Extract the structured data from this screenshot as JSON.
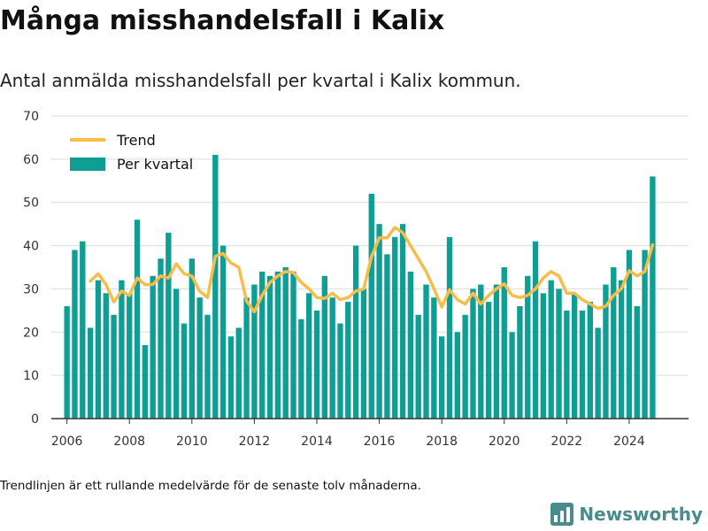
{
  "title": "Många misshandelsfall i Kalix",
  "subtitle": "Antal anmälda misshandelsfall per kvartal i Kalix kommun.",
  "footnote": "Trendlinjen är ett rullande medelvärde för de senaste tolv månaderna.",
  "brand": {
    "name": "Newsworthy",
    "icon": "newsworthy-logo-icon",
    "color": "#4a8c8c"
  },
  "colors": {
    "bar": "#0f9e94",
    "trend": "#f7bd4a",
    "grid": "#dddddd",
    "axis": "#333333"
  },
  "chart_data": {
    "type": "bar",
    "title": "",
    "xlabel": "",
    "ylabel": "",
    "ylim": [
      0,
      70
    ],
    "yticks": [
      0,
      10,
      20,
      30,
      40,
      50,
      60,
      70
    ],
    "xticks": [
      "2006",
      "2008",
      "2010",
      "2012",
      "2014",
      "2016",
      "2018",
      "2020",
      "2022",
      "2024"
    ],
    "grid": true,
    "legend": "top-left",
    "start_quarter": "2006-Q1",
    "series": [
      {
        "name": "Per kvartal",
        "type": "bar",
        "values": [
          26,
          39,
          41,
          21,
          32,
          29,
          24,
          32,
          29,
          46,
          17,
          33,
          37,
          43,
          30,
          22,
          37,
          28,
          24,
          61,
          40,
          19,
          21,
          28,
          31,
          34,
          33,
          34,
          35,
          34,
          23,
          29,
          25,
          33,
          28,
          22,
          27,
          40,
          30,
          52,
          45,
          38,
          42,
          45,
          34,
          24,
          31,
          28,
          19,
          42,
          20,
          24,
          30,
          31,
          27,
          31,
          35,
          20,
          26,
          33,
          41,
          29,
          32,
          30,
          25,
          29,
          25,
          27,
          21,
          31,
          35,
          32,
          39,
          26,
          39,
          56
        ]
      },
      {
        "name": "Trend",
        "type": "line",
        "values": [
          null,
          null,
          null,
          31.8,
          33.5,
          31,
          27,
          29.5,
          28.5,
          32.5,
          31,
          31,
          33,
          32.5,
          35.8,
          33.5,
          33,
          29.5,
          28,
          37.5,
          38.2,
          36,
          35,
          27.2,
          24.7,
          28.5,
          31.5,
          33,
          34,
          33.8,
          31.5,
          30,
          28,
          27.8,
          29,
          27.5,
          28,
          29.5,
          30,
          37.5,
          41.8,
          41.8,
          44.2,
          43,
          40,
          37,
          34,
          30,
          25.8,
          29.8,
          27.5,
          26.5,
          29,
          26.5,
          28.5,
          30,
          31.2,
          28.5,
          28,
          28.5,
          30,
          32.5,
          34,
          33,
          29,
          29,
          27.5,
          26.5,
          25.5,
          26,
          28.5,
          30,
          34.2,
          33,
          34,
          40.2
        ]
      }
    ]
  }
}
